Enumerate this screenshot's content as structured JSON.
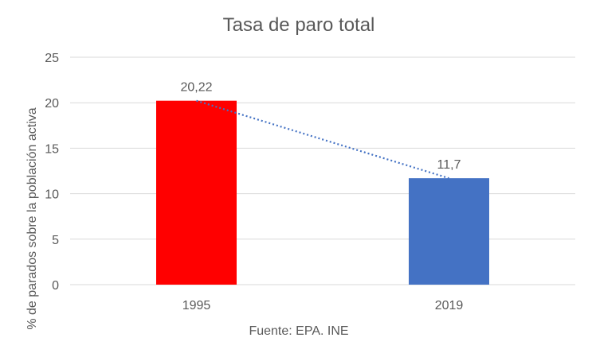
{
  "chart_data": {
    "type": "bar",
    "title": "Tasa de paro total",
    "xlabel": "Fuente: EPA. INE",
    "ylabel": "% de parados sobre la población activa",
    "categories": [
      "1995",
      "2019"
    ],
    "values": [
      20.22,
      11.7
    ],
    "data_labels": [
      "20,22",
      "11,7"
    ],
    "bar_colors": [
      "#FF0000",
      "#4472C4"
    ],
    "ylim": [
      0,
      25
    ],
    "yticks": [
      0,
      5,
      10,
      15,
      20,
      25
    ],
    "grid": true,
    "trendline": {
      "type": "linear",
      "style": "dotted",
      "color": "#4472C4"
    }
  }
}
